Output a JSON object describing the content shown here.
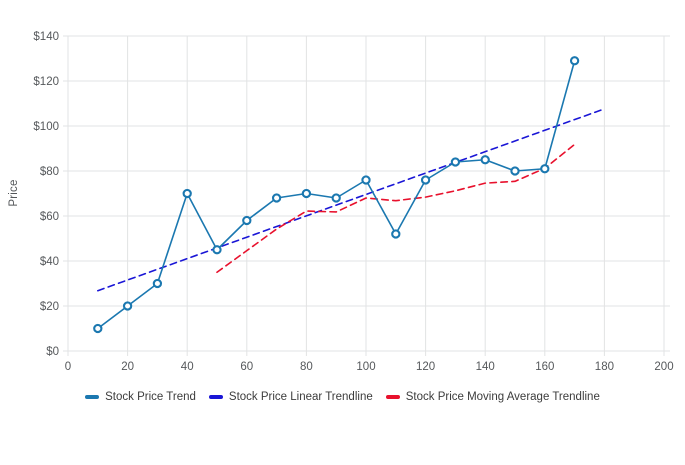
{
  "chart_data": {
    "type": "line",
    "title": "",
    "xlabel": "",
    "ylabel": "Price",
    "xlim": [
      0,
      200
    ],
    "ylim": [
      0,
      140
    ],
    "grid": true,
    "legend_position": "bottom",
    "x_ticks": [
      0,
      20,
      40,
      60,
      80,
      100,
      120,
      140,
      160,
      180,
      200
    ],
    "x_tick_labels": [
      "0",
      "20",
      "40",
      "60",
      "80",
      "100",
      "120",
      "140",
      "160",
      "180",
      "200"
    ],
    "y_ticks": [
      0,
      20,
      40,
      60,
      80,
      100,
      120,
      140
    ],
    "y_tick_labels": [
      "$0",
      "$20",
      "$40",
      "$60",
      "$80",
      "$100",
      "$120",
      "$140"
    ],
    "series": [
      {
        "name": "Stock Price Trend",
        "color": "#1b78b0",
        "dash": "solid",
        "markers": true,
        "x": [
          10,
          20,
          30,
          40,
          50,
          60,
          70,
          80,
          90,
          100,
          110,
          120,
          130,
          140,
          150,
          160,
          170
        ],
        "values": [
          10,
          20,
          30,
          70,
          45,
          58,
          68,
          70,
          68,
          76,
          52,
          76,
          84,
          85,
          80,
          81,
          129
        ]
      },
      {
        "name": "Stock Price Linear Trendline",
        "color": "#1a16d6",
        "dash": "dashed",
        "markers": false,
        "x": [
          10,
          180
        ],
        "values": [
          26.8,
          107.6
        ]
      },
      {
        "name": "Stock Price Moving Average Trendline",
        "color": "#e8112d",
        "dash": "dashed",
        "markers": false,
        "x": [
          50,
          60,
          70,
          80,
          90,
          100,
          110,
          120,
          130,
          140,
          150,
          160,
          170
        ],
        "values": [
          35,
          44.6,
          54.2,
          62.2,
          61.8,
          68,
          66.8,
          68.4,
          71.2,
          74.6,
          75.4,
          81.2,
          91.8
        ]
      }
    ],
    "style": {
      "grid_color": "#e2e3e4",
      "tick_label_color": "#55585b",
      "legend_text_color": "#3c3c3c",
      "marker_fill": "#ffffff"
    }
  }
}
